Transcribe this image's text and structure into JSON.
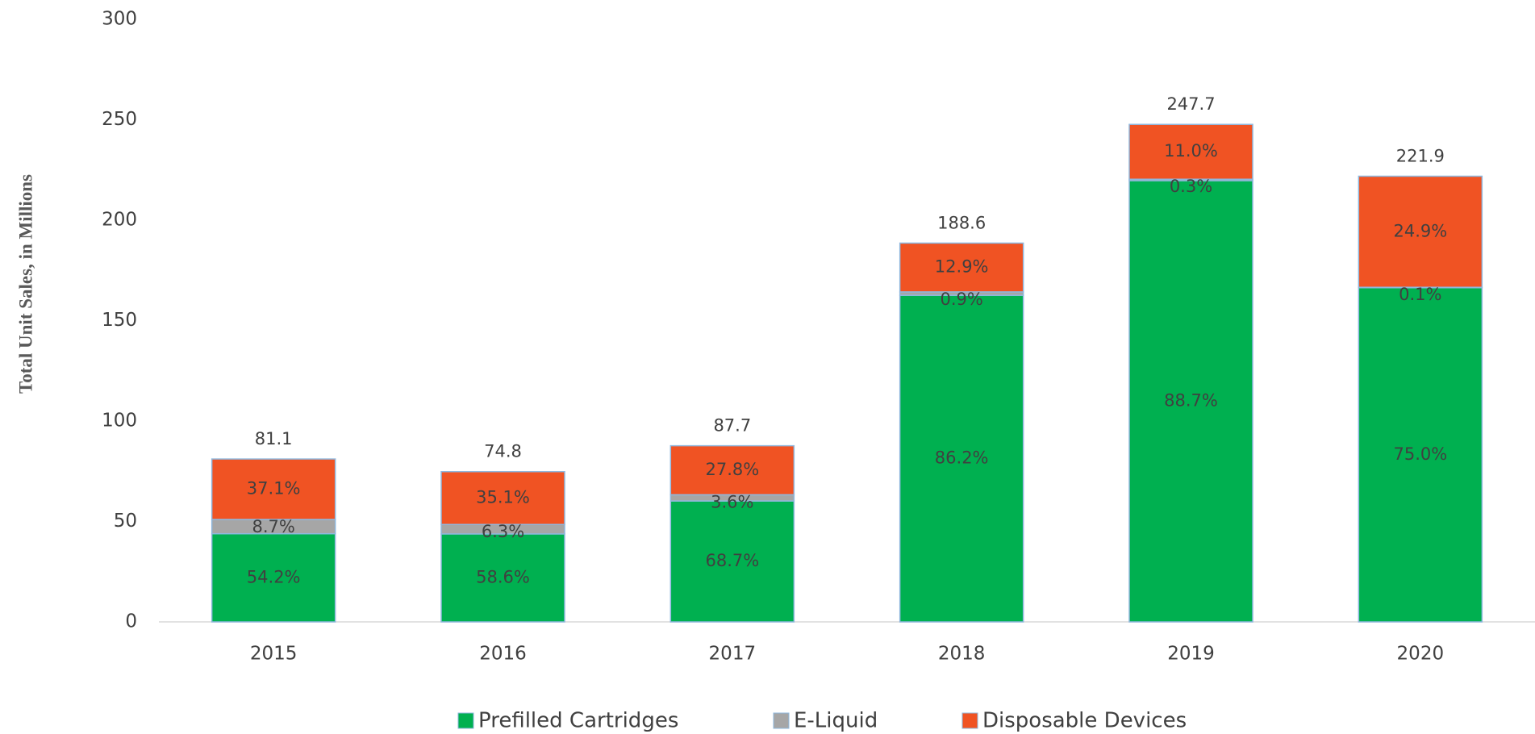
{
  "chart_data": {
    "type": "stacked_bar",
    "y_axis_label": "Total Unit Sales, in Millions",
    "categories": [
      "2015",
      "2016",
      "2017",
      "2018",
      "2019",
      "2020"
    ],
    "series": [
      {
        "name": "Prefilled Cartridges",
        "color": "#00b050",
        "values": [
          43.9,
          43.8,
          60.2,
          162.6,
          219.7,
          166.4
        ],
        "value_labels": [
          "54.2%",
          "58.6%",
          "68.7%",
          "86.2%",
          "88.7%",
          "75.0%"
        ]
      },
      {
        "name": "E-Liquid",
        "color": "#a6a6a6",
        "values": [
          7.1,
          4.7,
          3.1,
          1.7,
          0.7,
          0.2
        ],
        "value_labels": [
          "8.7%",
          "6.3%",
          "3.6%",
          "0.9%",
          "0.3%",
          "0.1%"
        ]
      },
      {
        "name": "Disposable Devices",
        "color": "#f05323",
        "values": [
          30.1,
          26.3,
          24.4,
          24.3,
          27.3,
          55.3
        ],
        "value_labels": [
          "37.1%",
          "35.1%",
          "27.8%",
          "12.9%",
          "11.0%",
          "24.9%"
        ]
      }
    ],
    "totals": [
      81.1,
      74.8,
      87.7,
      188.6,
      247.7,
      221.9
    ],
    "ylim": [
      0,
      300
    ],
    "yticks": [
      0,
      50,
      100,
      150,
      200,
      250,
      300
    ],
    "grid": false,
    "legend": "bottom"
  }
}
